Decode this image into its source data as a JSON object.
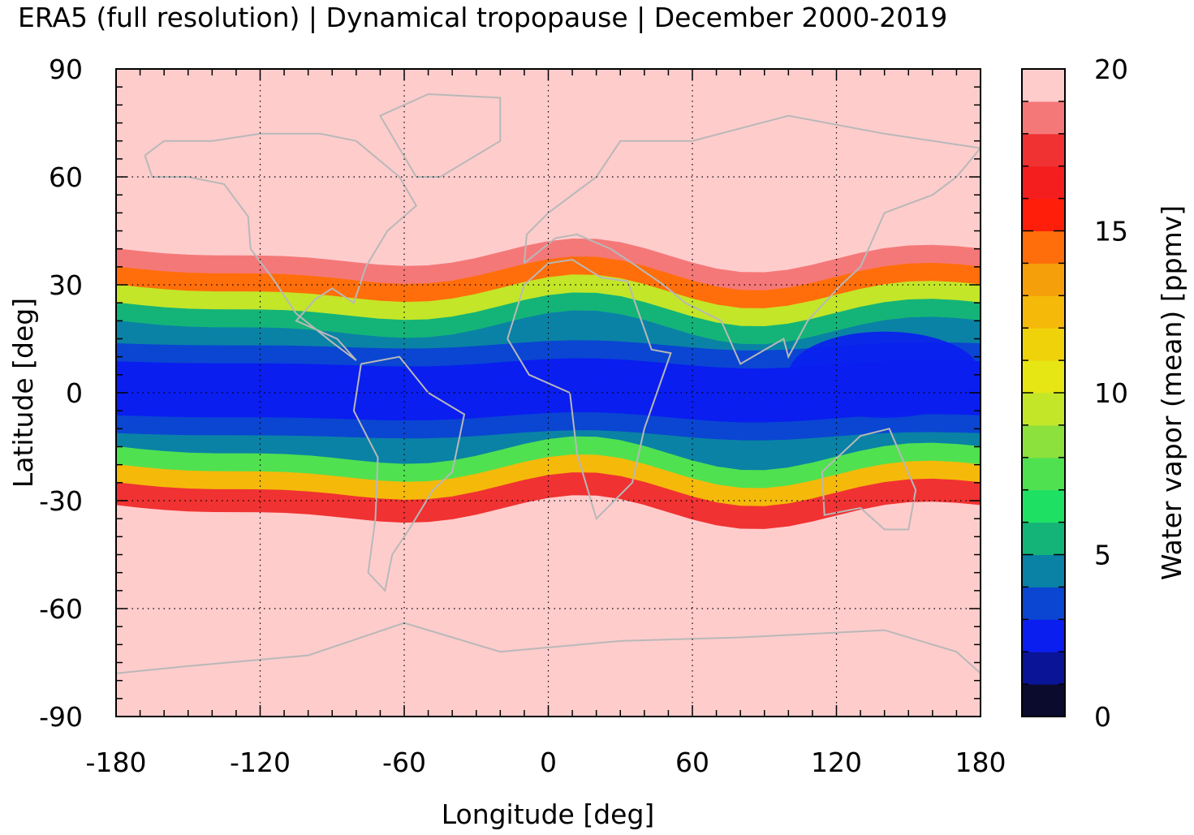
{
  "title": "ERA5 (full resolution) | Dynamical tropopause | December 2000-2019",
  "colors": {
    "background": "#ffcccc",
    "coastline": "#b8b8b8",
    "grid": "#000000",
    "palette": [
      "#0b0b2e",
      "#0a1496",
      "#0a1ef0",
      "#0a46d2",
      "#0a82a5",
      "#14b478",
      "#1ee164",
      "#50e150",
      "#8ce13c",
      "#c3e628",
      "#e6e614",
      "#f0d20a",
      "#f5b90a",
      "#f5a00a",
      "#ff6e0a",
      "#ff1e0a",
      "#f51e1e",
      "#f03232",
      "#f57878",
      "#ffcccc"
    ]
  },
  "chart_data": {
    "type": "heatmap",
    "title": "ERA5 (full resolution) | Dynamical tropopause | December 2000-2019",
    "xlabel": "Longitude [deg]",
    "ylabel": "Latitude [deg]",
    "xlim": [
      -180,
      180
    ],
    "ylim": [
      -90,
      90
    ],
    "xticks": [
      "-180",
      "-120",
      "-60",
      "0",
      "60",
      "120",
      "180"
    ],
    "yticks": [
      "90",
      "60",
      "30",
      "0",
      "-30",
      "-60",
      "-90"
    ],
    "grid": true,
    "colorbar": {
      "label": "Water vapor (mean) [ppmv]",
      "ticks": [
        "20",
        "15",
        "10",
        "5",
        "0"
      ],
      "range": [
        0,
        20
      ],
      "levels": 20
    },
    "zonal_profile": {
      "comment_free": true,
      "latitudes": [
        35,
        30,
        25,
        20,
        15,
        10,
        5,
        0,
        -5,
        -10,
        -15,
        -20,
        -25,
        -30,
        -35
      ],
      "values": [
        18,
        14,
        9,
        5.5,
        4.2,
        3.2,
        2.6,
        2.3,
        2.8,
        3.6,
        4.8,
        7.5,
        12,
        17,
        20
      ]
    }
  }
}
